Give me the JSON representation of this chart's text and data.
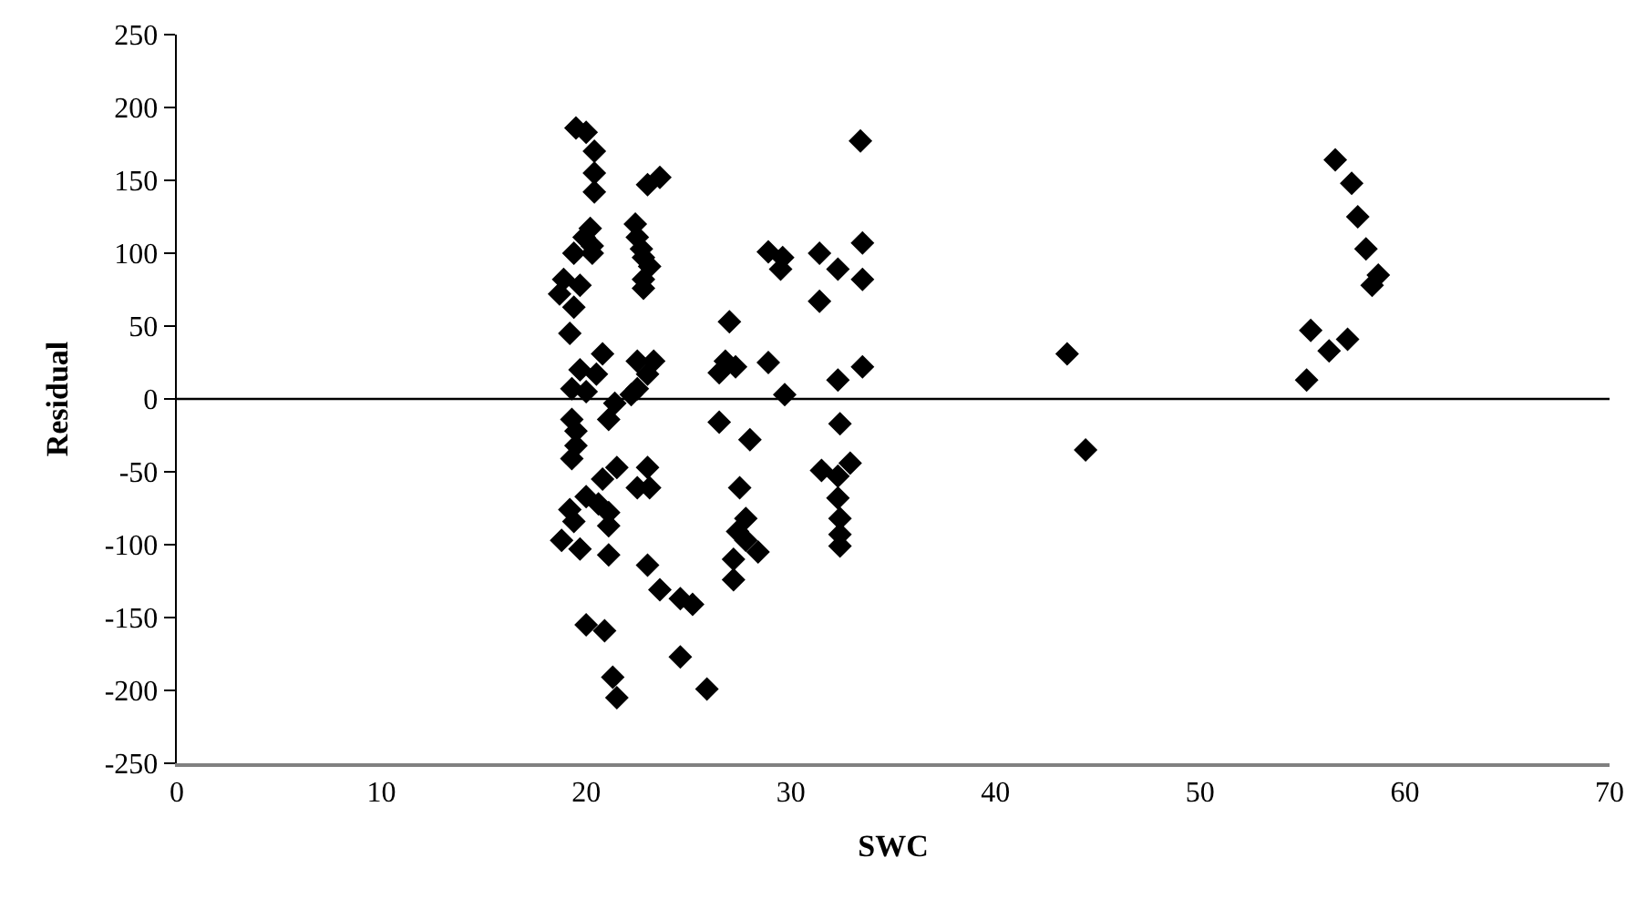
{
  "chart_data": {
    "type": "scatter",
    "xlabel": "SWC",
    "ylabel": "Residual",
    "series": [
      {
        "color": "#000000",
        "x": [
          19.5,
          20.0,
          20.4,
          20.4,
          20.4,
          20.2,
          19.9,
          20.3,
          20.3,
          19.4,
          18.9,
          19.7,
          18.7,
          19.4,
          19.2,
          20.8,
          19.7,
          20.5,
          19.3,
          20.0,
          21.4,
          21.1,
          19.3,
          19.5,
          19.5,
          19.3,
          21.5,
          20.8,
          20.0,
          20.6,
          21.1,
          21.1,
          19.2,
          19.4,
          18.8,
          19.7,
          21.1,
          20.0,
          20.9,
          21.3,
          21.5,
          23.0,
          23.6,
          22.4,
          22.5,
          22.7,
          22.8,
          23.1,
          22.8,
          22.8,
          22.5,
          23.3,
          23.0,
          22.5,
          22.2,
          23.0,
          22.5,
          23.1,
          23.0,
          23.6,
          24.6,
          25.2,
          24.6,
          25.9,
          27.0,
          26.8,
          27.3,
          26.5,
          28.9,
          29.7,
          26.5,
          28.0,
          27.5,
          27.8,
          27.4,
          28.4,
          27.2,
          27.8,
          27.2,
          28.9,
          29.6,
          29.5,
          33.4,
          33.5,
          31.4,
          32.3,
          33.5,
          31.4,
          33.5,
          32.3,
          32.4,
          31.5,
          32.9,
          32.3,
          32.3,
          32.4,
          32.4,
          32.4,
          43.5,
          44.4,
          56.6,
          57.4,
          57.7,
          58.1,
          58.4,
          58.7,
          55.2,
          55.4,
          56.3,
          57.2
        ],
        "values": [
          186,
          183,
          170,
          155,
          142,
          117,
          111,
          105,
          100,
          100,
          82,
          78,
          72,
          63,
          45,
          31,
          20,
          17,
          7,
          5,
          -3,
          -14,
          -14,
          -22,
          -32,
          -41,
          -47,
          -55,
          -67,
          -72,
          -78,
          -87,
          -76,
          -84,
          -97,
          -103,
          -107,
          -155,
          -159,
          -191,
          -205,
          147,
          152,
          120,
          111,
          103,
          97,
          91,
          82,
          76,
          26,
          26,
          17,
          7,
          3,
          -47,
          -61,
          -61,
          -114,
          -131,
          -137,
          -141,
          -177,
          -199,
          53,
          26,
          22,
          18,
          25,
          3,
          -16,
          -28,
          -61,
          -82,
          -91,
          -105,
          -110,
          -97,
          -124,
          101,
          97,
          89,
          177,
          107,
          100,
          89,
          82,
          67,
          22,
          13,
          -17,
          -49,
          -44,
          -53,
          -68,
          -82,
          -93,
          -101,
          31,
          -35,
          164,
          148,
          125,
          103,
          78,
          85,
          13,
          47,
          33,
          41
        ]
      }
    ],
    "marker": "diamond",
    "xlim": [
      0,
      70
    ],
    "xticks": [
      0,
      10,
      20,
      30,
      40,
      50,
      60,
      70
    ],
    "ylim": [
      -250,
      250
    ],
    "yticks": [
      -250,
      -200,
      -150,
      -100,
      -50,
      0,
      50,
      100,
      150,
      200,
      250
    ],
    "ref_lines": [
      {
        "axis": "y",
        "value": 0,
        "color": "#000000"
      }
    ]
  }
}
